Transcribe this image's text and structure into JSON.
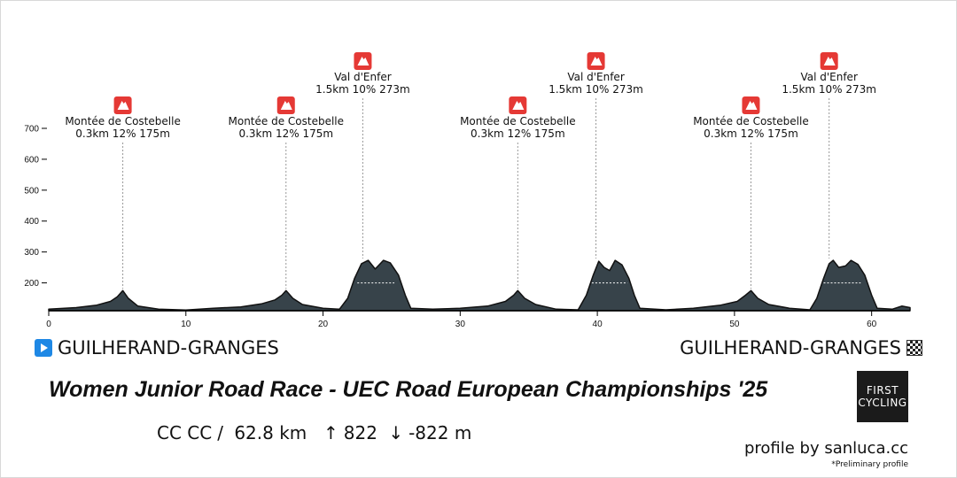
{
  "race": {
    "title": "Women Junior Road Race - UEC Road European Championships '25",
    "start_location": "GUILHERAND-GRANGES",
    "finish_location": "GUILHERAND-GRANGES",
    "category": "CC CC",
    "distance": "62.8 km",
    "elevation_gain": "822",
    "elevation_loss": "-822 m",
    "credit": "profile by sanluca.cc",
    "note": "*Preliminary profile",
    "logo_line1": "FIRST",
    "logo_line2": "CYCLING"
  },
  "colors": {
    "profile_fill": "#37434a",
    "climb_icon": "#e53935",
    "axis": "#000000"
  },
  "chart_data": {
    "type": "area",
    "xlabel": "",
    "ylabel": "",
    "xlim": [
      0,
      62.8
    ],
    "ylim": [
      110,
      720
    ],
    "x_ticks": [
      0,
      10,
      20,
      30,
      40,
      50,
      60
    ],
    "y_ticks": [
      200,
      300,
      400,
      500,
      600,
      700
    ],
    "grid": false,
    "series": [
      {
        "points": [
          [
            0,
            115
          ],
          [
            2,
            120
          ],
          [
            3.5,
            128
          ],
          [
            4.5,
            140
          ],
          [
            5.0,
            155
          ],
          [
            5.4,
            175
          ],
          [
            5.8,
            150
          ],
          [
            6.5,
            125
          ],
          [
            8,
            115
          ],
          [
            10,
            112
          ],
          [
            12,
            118
          ],
          [
            14,
            122
          ],
          [
            15.5,
            132
          ],
          [
            16.5,
            145
          ],
          [
            17.0,
            160
          ],
          [
            17.3,
            175
          ],
          [
            17.8,
            150
          ],
          [
            18.5,
            130
          ],
          [
            20,
            118
          ],
          [
            21.2,
            115
          ],
          [
            21.8,
            150
          ],
          [
            22.3,
            215
          ],
          [
            22.8,
            262
          ],
          [
            23.3,
            273
          ],
          [
            23.8,
            245
          ],
          [
            24.4,
            273
          ],
          [
            24.9,
            265
          ],
          [
            25.5,
            225
          ],
          [
            26.0,
            160
          ],
          [
            26.4,
            118
          ],
          [
            28,
            115
          ],
          [
            30,
            118
          ],
          [
            32,
            125
          ],
          [
            33.3,
            140
          ],
          [
            33.9,
            160
          ],
          [
            34.2,
            175
          ],
          [
            34.7,
            150
          ],
          [
            35.5,
            130
          ],
          [
            37,
            115
          ],
          [
            38.6,
            113
          ],
          [
            39.2,
            160
          ],
          [
            39.7,
            225
          ],
          [
            40.1,
            270
          ],
          [
            40.5,
            250
          ],
          [
            40.9,
            240
          ],
          [
            41.3,
            273
          ],
          [
            41.8,
            258
          ],
          [
            42.3,
            215
          ],
          [
            42.7,
            160
          ],
          [
            43.1,
            118
          ],
          [
            45,
            113
          ],
          [
            47,
            118
          ],
          [
            49,
            128
          ],
          [
            50.2,
            140
          ],
          [
            50.8,
            160
          ],
          [
            51.2,
            175
          ],
          [
            51.7,
            150
          ],
          [
            52.5,
            130
          ],
          [
            54,
            118
          ],
          [
            55.5,
            113
          ],
          [
            56.0,
            150
          ],
          [
            56.5,
            215
          ],
          [
            56.9,
            262
          ],
          [
            57.2,
            273
          ],
          [
            57.6,
            250
          ],
          [
            58.1,
            255
          ],
          [
            58.5,
            273
          ],
          [
            59.0,
            260
          ],
          [
            59.5,
            225
          ],
          [
            60.0,
            160
          ],
          [
            60.4,
            118
          ],
          [
            61.5,
            115
          ],
          [
            62.2,
            125
          ],
          [
            62.8,
            120
          ]
        ]
      }
    ],
    "climbs": [
      {
        "km": 5.4,
        "elevation": 175,
        "name": "Montée de Costebelle",
        "details": "0.3km 12% 175m",
        "tier": "low"
      },
      {
        "km": 17.3,
        "elevation": 175,
        "name": "Montée de Costebelle",
        "details": "0.3km 12% 175m",
        "tier": "low"
      },
      {
        "km": 22.9,
        "elevation": 273,
        "name": "Val d'Enfer",
        "details": "1.5km 10% 273m",
        "tier": "high"
      },
      {
        "km": 34.2,
        "elevation": 175,
        "name": "Montée de Costebelle",
        "details": "0.3km 12% 175m",
        "tier": "low"
      },
      {
        "km": 39.9,
        "elevation": 273,
        "name": "Val d'Enfer",
        "details": "1.5km 10% 273m",
        "tier": "high"
      },
      {
        "km": 51.2,
        "elevation": 175,
        "name": "Montée de Costebelle",
        "details": "0.3km 12% 175m",
        "tier": "low"
      },
      {
        "km": 56.9,
        "elevation": 273,
        "name": "Val d'Enfer",
        "details": "1.5km 10% 273m",
        "tier": "high"
      }
    ]
  }
}
